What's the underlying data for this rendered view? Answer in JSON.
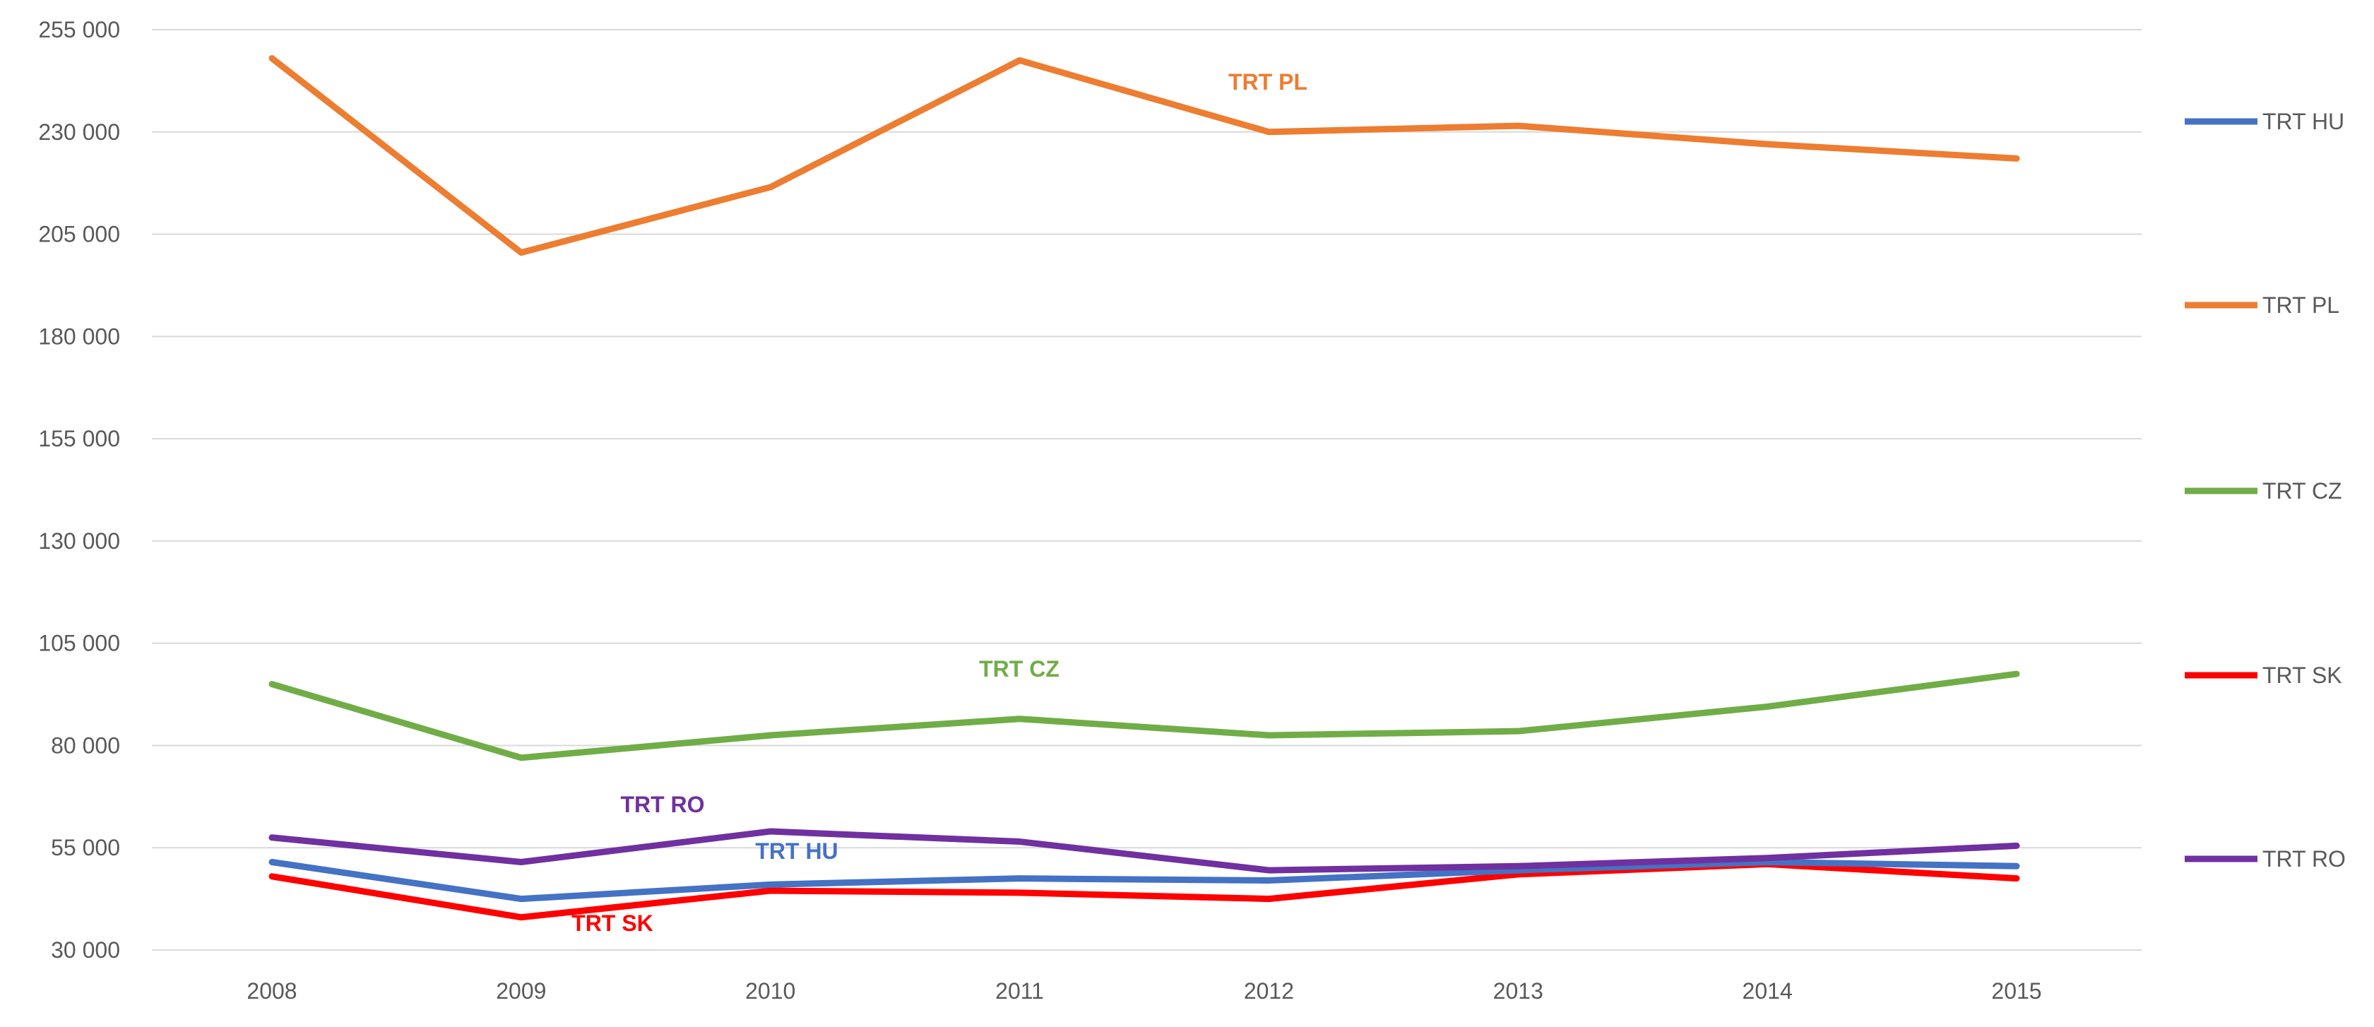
{
  "chart_data": {
    "type": "line",
    "title": "",
    "xlabel": "",
    "ylabel": "",
    "categories": [
      "2008",
      "2009",
      "2010",
      "2011",
      "2012",
      "2013",
      "2014",
      "2015"
    ],
    "ylim": [
      30000,
      255000
    ],
    "yticks": [
      30000,
      55000,
      80000,
      105000,
      130000,
      155000,
      180000,
      205000,
      230000,
      255000
    ],
    "ytick_labels": [
      "30 000",
      "55 000",
      "80 000",
      "105 000",
      "130 000",
      "155 000",
      "180 000",
      "205 000",
      "230 000",
      "255 000"
    ],
    "grid": true,
    "legend_position": "right",
    "series": [
      {
        "key": "hu",
        "name": "TRT HU",
        "color": "#4472c4",
        "values": [
          51500,
          42500,
          46000,
          47500,
          47000,
          49500,
          51500,
          50500
        ]
      },
      {
        "key": "pl",
        "name": "TRT PL",
        "color": "#ed7d31",
        "values": [
          248000,
          200500,
          216500,
          247500,
          230000,
          231500,
          227000,
          223500
        ]
      },
      {
        "key": "cz",
        "name": "TRT CZ",
        "color": "#70ad47",
        "values": [
          95000,
          77000,
          82500,
          86500,
          82500,
          83500,
          89500,
          97500
        ]
      },
      {
        "key": "sk",
        "name": "TRT SK",
        "color": "#ff0000",
        "values": [
          48000,
          38000,
          44500,
          44000,
          42500,
          48500,
          51000,
          47500
        ]
      },
      {
        "key": "ro",
        "name": "TRT RO",
        "color": "#7030a0",
        "values": [
          57500,
          51500,
          59000,
          56500,
          49500,
          50500,
          52500,
          55500
        ]
      }
    ],
    "annotations": [
      {
        "series": "pl",
        "text": "TRT PL"
      },
      {
        "series": "cz",
        "text": "TRT CZ"
      },
      {
        "series": "ro",
        "text": "TRT RO"
      },
      {
        "series": "hu",
        "text": "TRT HU"
      },
      {
        "series": "sk",
        "text": "TRT SK"
      }
    ]
  }
}
